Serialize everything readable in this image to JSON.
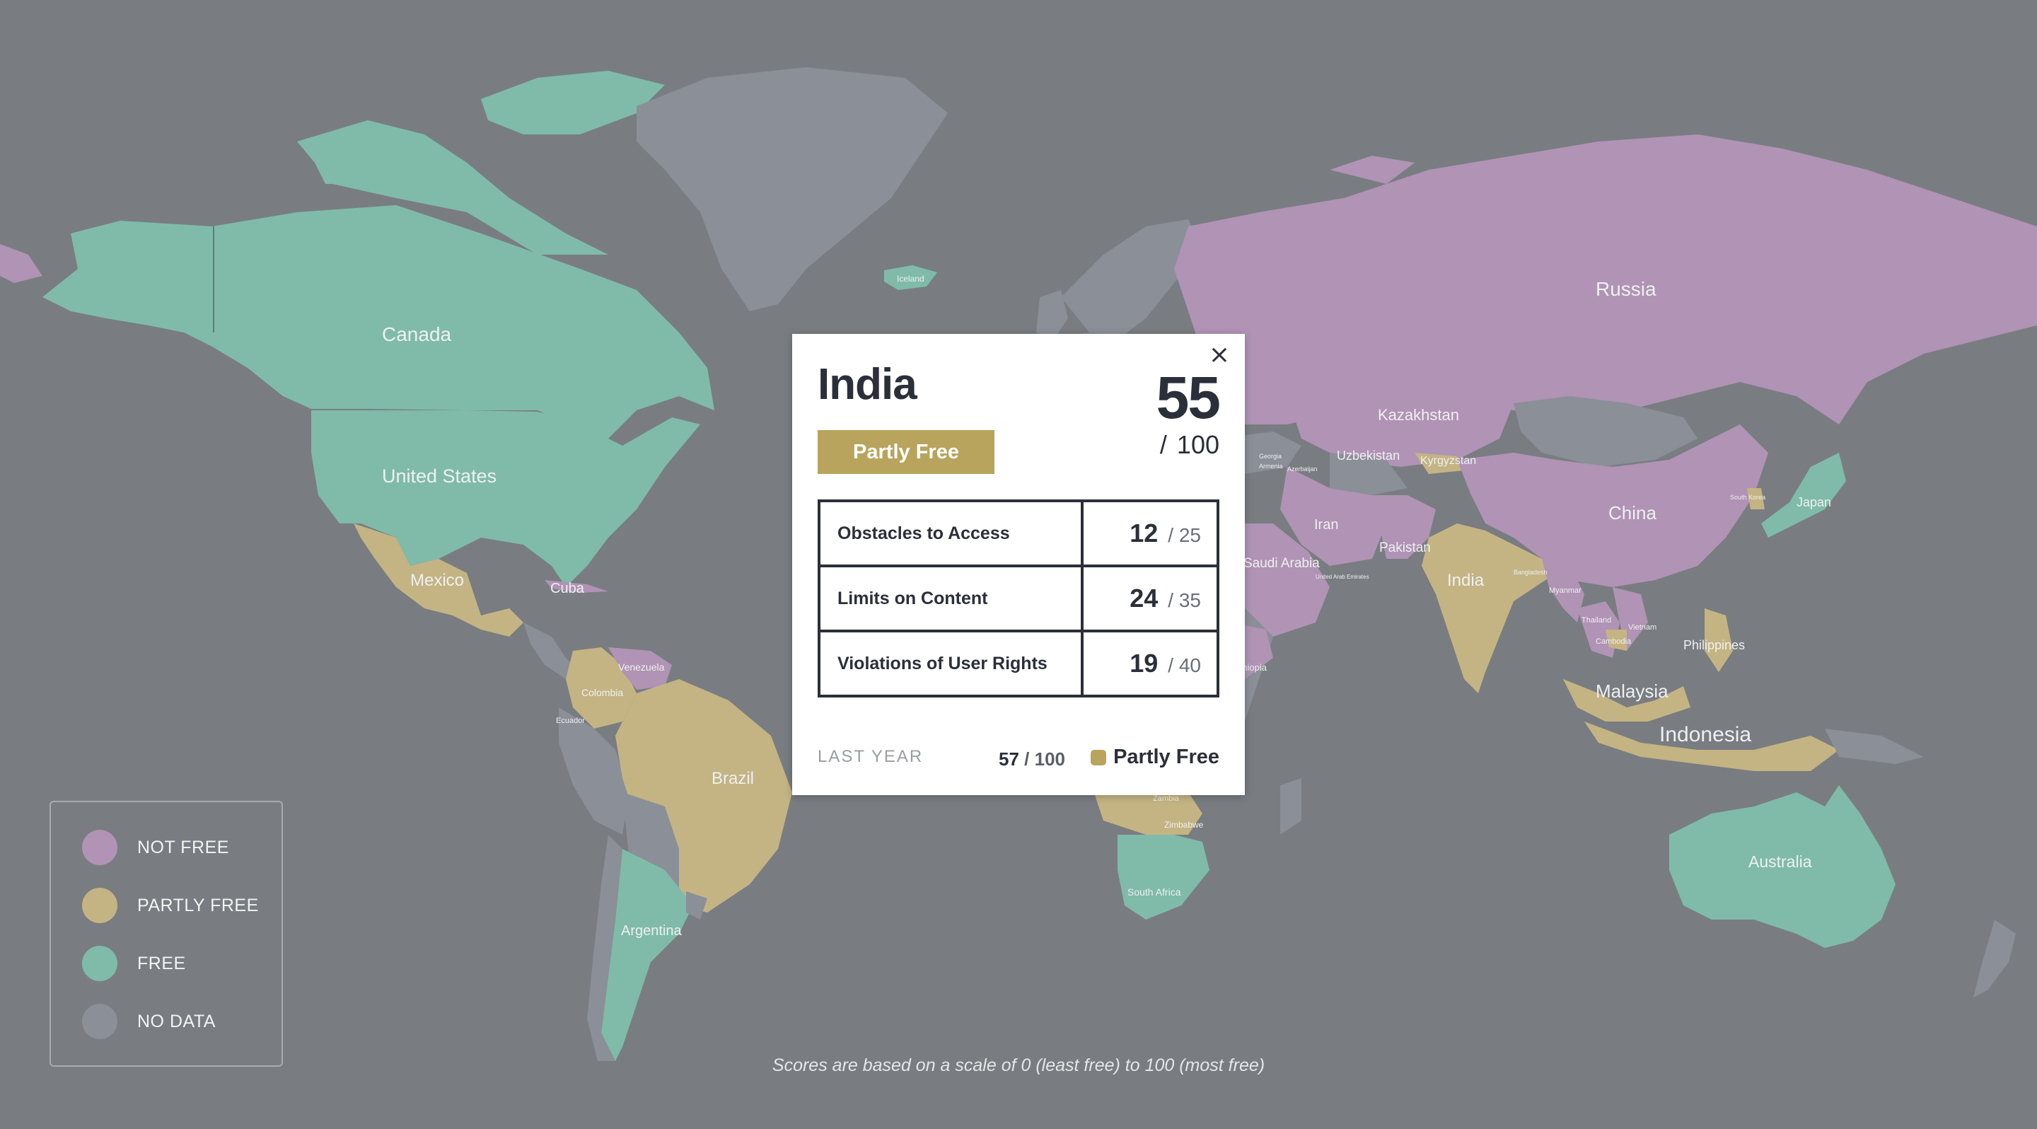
{
  "colors": {
    "background": "#797d81",
    "not_free": "#b093b5",
    "partly_free": "#c4b483",
    "free": "#7fbba8",
    "no_data": "#8a8f98",
    "popup_badge": "#b8a45c",
    "text_dark": "#2b2f3a"
  },
  "country_labels": [
    "Canada",
    "United States",
    "Mexico",
    "Cuba",
    "Venezuela",
    "Colombia",
    "Ecuador",
    "Brazil",
    "Argentina",
    "Iceland",
    "Russia",
    "Kazakhstan",
    "Uzbekistan",
    "Kyrgyzstan",
    "Iran",
    "Pakistan",
    "Saudi Arabia",
    "India",
    "China",
    "Japan",
    "South Korea",
    "Myanmar",
    "Thailand",
    "Vietnam",
    "Cambodia",
    "Philippines",
    "Malaysia",
    "Indonesia",
    "Australia",
    "South Africa",
    "Zimbabwe",
    "Zambia",
    "Ethiopia",
    "Bangladesh",
    "Azerbaijan",
    "Armenia",
    "Georgia",
    "United Arab Emirates"
  ],
  "popup": {
    "country": "India",
    "status": "Partly Free",
    "status_color": "#b8a45c",
    "total_score": "55",
    "total_max_slash": "/",
    "total_max": "100",
    "close_symbol": "×",
    "categories": [
      {
        "name": "Obstacles to Access",
        "score": "12",
        "max": "/ 25"
      },
      {
        "name": "Limits on Content",
        "score": "24",
        "max": "/ 35"
      },
      {
        "name": "Violations of User Rights",
        "score": "19",
        "max": "/ 40"
      }
    ],
    "last_year": {
      "label": "LAST YEAR",
      "score": "57",
      "max": "/ 100",
      "status": "Partly Free",
      "status_color": "#b8a45c"
    }
  },
  "legend": {
    "items": [
      {
        "label": "NOT FREE",
        "color": "#b093b5"
      },
      {
        "label": "PARTLY FREE",
        "color": "#c4b483"
      },
      {
        "label": "FREE",
        "color": "#7fbba8"
      },
      {
        "label": "NO DATA",
        "color": "#8a8f98"
      }
    ]
  },
  "footnote": "Scores are based on a scale of 0 (least free) to 100 (most free)"
}
